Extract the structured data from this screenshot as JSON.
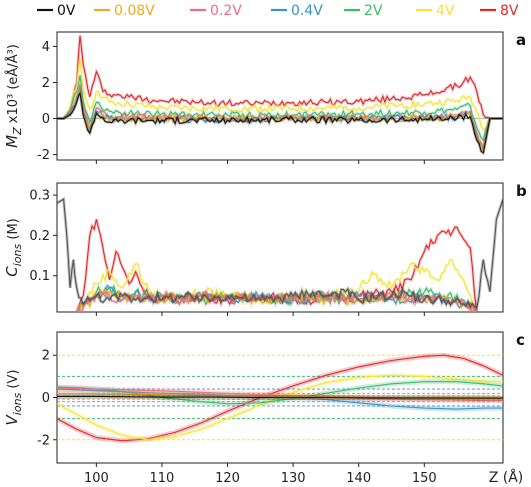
{
  "legend": [
    {
      "label": "0V",
      "color": "#111111"
    },
    {
      "label": "0.08V",
      "color": "#f2a81d"
    },
    {
      "label": "0.2V",
      "color": "#ef6b86"
    },
    {
      "label": "0.4V",
      "color": "#3a93c3"
    },
    {
      "label": "2V",
      "color": "#3bbd6a"
    },
    {
      "label": "4V",
      "color": "#f4e43a"
    },
    {
      "label": "8V",
      "color": "#e0282c"
    }
  ],
  "x_axis": {
    "ticks": [
      "100",
      "110",
      "120",
      "130",
      "140",
      "150"
    ],
    "tick_values": [
      100,
      110,
      120,
      130,
      140,
      150
    ],
    "range": [
      94,
      162
    ],
    "label": "Z (Å)"
  },
  "chart_data": [
    {
      "type": "line",
      "panel": "a",
      "ylabel_main": "M",
      "ylabel_sub": "Z",
      "ylabel_rest": " x10³ (eÅ/Å³)",
      "ylim": [
        -2.3,
        4.8
      ],
      "yticks": [
        -2,
        0,
        2,
        4
      ],
      "ytick_labels": [
        "-2",
        "0",
        "2",
        "4"
      ],
      "series": [
        {
          "name": "8V",
          "x": [
            94,
            95,
            96,
            97,
            97.5,
            98,
            99,
            100,
            101,
            103,
            105,
            110,
            115,
            120,
            125,
            130,
            135,
            140,
            145,
            150,
            155,
            157,
            158,
            159,
            160,
            162
          ],
          "y": [
            0,
            0,
            0.5,
            2,
            4.6,
            3,
            1.2,
            2.6,
            1.5,
            1.3,
            1.2,
            1.0,
            0.9,
            0.85,
            0.85,
            0.9,
            0.9,
            0.95,
            1.1,
            1.3,
            1.8,
            2.3,
            1.5,
            0.2,
            0,
            0
          ]
        },
        {
          "name": "4V",
          "x": [
            94,
            95,
            96,
            97,
            97.5,
            98,
            99,
            100,
            102,
            105,
            110,
            120,
            130,
            140,
            150,
            155,
            157,
            158,
            159,
            160,
            162
          ],
          "y": [
            0,
            0,
            0.6,
            1.8,
            3.3,
            1.6,
            0.5,
            1.5,
            0.9,
            0.8,
            0.6,
            0.55,
            0.55,
            0.6,
            0.8,
            1.0,
            1.2,
            0.4,
            -0.6,
            0,
            0
          ]
        },
        {
          "name": "2V",
          "x": [
            94,
            95,
            96,
            97,
            97.5,
            98,
            99,
            100,
            102,
            105,
            110,
            120,
            130,
            140,
            150,
            155,
            157,
            158,
            159,
            160,
            162
          ],
          "y": [
            0,
            0,
            0.4,
            1.5,
            2.4,
            1.0,
            -0.2,
            0.9,
            0.4,
            0.3,
            0.25,
            0.2,
            0.2,
            0.25,
            0.35,
            0.5,
            0.7,
            -0.5,
            -1.2,
            0,
            0
          ]
        },
        {
          "name": "0.2V",
          "x": [
            94,
            95,
            96,
            97,
            97.5,
            98,
            99,
            100,
            102,
            105,
            110,
            120,
            130,
            140,
            150,
            155,
            157,
            158,
            159,
            160,
            162
          ],
          "y": [
            0,
            0,
            0.3,
            1.2,
            1.9,
            0.6,
            -0.6,
            0.6,
            0.1,
            0.1,
            0.05,
            0,
            0.05,
            0.05,
            0.1,
            0.2,
            0.4,
            -0.8,
            -1.6,
            0,
            0
          ]
        },
        {
          "name": "0.4V",
          "x": [
            94,
            95,
            96,
            97,
            97.5,
            98,
            99,
            100,
            102,
            105,
            110,
            120,
            130,
            140,
            150,
            155,
            157,
            158,
            159,
            160,
            162
          ],
          "y": [
            0,
            0,
            0.3,
            1.1,
            1.7,
            0.4,
            -0.8,
            0.4,
            0,
            0,
            -0.05,
            -0.05,
            0,
            0,
            0.05,
            0.1,
            0.3,
            -1.0,
            -1.7,
            0,
            0
          ]
        },
        {
          "name": "0.08V",
          "x": [
            94,
            95,
            96,
            97,
            97.5,
            98,
            99,
            100,
            102,
            105,
            110,
            120,
            130,
            140,
            150,
            155,
            157,
            158,
            159,
            160,
            162
          ],
          "y": [
            0,
            0,
            0.2,
            1.0,
            1.6,
            0.3,
            -0.7,
            0.3,
            -0.1,
            0,
            0,
            0,
            0,
            0,
            0,
            0.1,
            0.2,
            -1.1,
            -1.8,
            0,
            0
          ]
        },
        {
          "name": "0V",
          "x": [
            94,
            95,
            96,
            97,
            97.5,
            98,
            99,
            100,
            102,
            105,
            110,
            120,
            130,
            140,
            150,
            155,
            157,
            158,
            159,
            160,
            162
          ],
          "y": [
            0,
            0,
            0.2,
            0.9,
            1.4,
            0.2,
            -0.8,
            0.3,
            -0.2,
            -0.1,
            -0.1,
            -0.1,
            -0.05,
            -0.1,
            -0.05,
            0,
            0.1,
            -1.2,
            -1.9,
            0,
            0
          ]
        }
      ],
      "reference_line": 0
    },
    {
      "type": "line",
      "panel": "b",
      "ylabel_main": "C",
      "ylabel_sub": "ions",
      "ylabel_rest": " (M)",
      "ylim": [
        0.01,
        0.33
      ],
      "yticks": [
        0.1,
        0.2,
        0.3
      ],
      "ytick_labels": [
        "0.1",
        "0.2",
        "0.3"
      ],
      "series": [
        {
          "name": "8V",
          "x": [
            97,
            98,
            99,
            100,
            101,
            102,
            103,
            104,
            105,
            106,
            107,
            108,
            110,
            113,
            116,
            120,
            125,
            130,
            135,
            140,
            145,
            148,
            150,
            152,
            153,
            154,
            155,
            156,
            157,
            158
          ],
          "y": [
            0.01,
            0.05,
            0.2,
            0.24,
            0.17,
            0.09,
            0.16,
            0.12,
            0.08,
            0.11,
            0.07,
            0.05,
            0.05,
            0.04,
            0.05,
            0.04,
            0.05,
            0.04,
            0.04,
            0.05,
            0.06,
            0.09,
            0.16,
            0.2,
            0.21,
            0.2,
            0.22,
            0.19,
            0.17,
            0.01
          ]
        },
        {
          "name": "4V",
          "x": [
            97,
            98,
            100,
            102,
            104,
            106,
            108,
            110,
            113,
            116,
            120,
            125,
            130,
            135,
            140,
            142,
            145,
            148,
            150,
            152,
            154,
            156,
            158
          ],
          "y": [
            0.01,
            0.03,
            0.08,
            0.11,
            0.07,
            0.13,
            0.06,
            0.05,
            0.04,
            0.06,
            0.05,
            0.04,
            0.05,
            0.05,
            0.06,
            0.11,
            0.07,
            0.13,
            0.11,
            0.09,
            0.14,
            0.09,
            0.01
          ]
        },
        {
          "name": "2V",
          "x": [
            97,
            98,
            100,
            102,
            104,
            106,
            108,
            110,
            113,
            116,
            120,
            125,
            130,
            135,
            140,
            145,
            150,
            153,
            156,
            158
          ],
          "y": [
            0.01,
            0.03,
            0.06,
            0.07,
            0.05,
            0.06,
            0.05,
            0.04,
            0.05,
            0.04,
            0.05,
            0.04,
            0.04,
            0.05,
            0.04,
            0.05,
            0.06,
            0.05,
            0.04,
            0.01
          ]
        },
        {
          "name": "0.4V",
          "x": [
            97,
            98,
            100,
            102,
            104,
            106,
            108,
            110,
            113,
            116,
            120,
            125,
            130,
            135,
            140,
            145,
            150,
            153,
            156,
            158
          ],
          "y": [
            0.01,
            0.03,
            0.05,
            0.07,
            0.04,
            0.06,
            0.04,
            0.05,
            0.04,
            0.05,
            0.04,
            0.05,
            0.04,
            0.04,
            0.05,
            0.04,
            0.05,
            0.04,
            0.03,
            0.01
          ]
        },
        {
          "name": "0.08V",
          "x": [
            97,
            98,
            100,
            102,
            104,
            106,
            108,
            110,
            113,
            116,
            120,
            125,
            130,
            135,
            140,
            145,
            150,
            153,
            156,
            158
          ],
          "y": [
            0.01,
            0.02,
            0.05,
            0.06,
            0.05,
            0.04,
            0.05,
            0.04,
            0.05,
            0.04,
            0.05,
            0.04,
            0.05,
            0.04,
            0.04,
            0.05,
            0.04,
            0.04,
            0.03,
            0.01
          ]
        },
        {
          "name": "0.2V",
          "x": [
            97,
            98,
            100,
            102,
            104,
            106,
            108,
            110,
            113,
            116,
            120,
            125,
            130,
            135,
            140,
            145,
            150,
            153,
            156,
            158
          ],
          "y": [
            0.01,
            0.02,
            0.05,
            0.05,
            0.04,
            0.05,
            0.04,
            0.05,
            0.04,
            0.05,
            0.04,
            0.05,
            0.04,
            0.05,
            0.04,
            0.05,
            0.04,
            0.04,
            0.03,
            0.01
          ]
        },
        {
          "name": "0V",
          "x": [
            94,
            95,
            95.5,
            96,
            96.5,
            97,
            98,
            99,
            100,
            102,
            104,
            106,
            108,
            110,
            113,
            116,
            120,
            125,
            130,
            133,
            135,
            138,
            140,
            143,
            145,
            147,
            148,
            150,
            153,
            156,
            158,
            159,
            160,
            161,
            162
          ],
          "y": [
            0.28,
            0.29,
            0.2,
            0.07,
            0.14,
            0.07,
            0.03,
            0.04,
            0.05,
            0.04,
            0.05,
            0.04,
            0.05,
            0.04,
            0.05,
            0.04,
            0.05,
            0.04,
            0.05,
            0.06,
            0.05,
            0.06,
            0.04,
            0.05,
            0.05,
            0.06,
            0.05,
            0.04,
            0.04,
            0.03,
            0.02,
            0.14,
            0.06,
            0.24,
            0.29
          ]
        }
      ]
    },
    {
      "type": "line",
      "panel": "c",
      "ylabel_main": "V",
      "ylabel_sub": "ions",
      "ylabel_rest": " (V)",
      "ylim": [
        -3.1,
        3.1
      ],
      "yticks": [
        -2,
        0,
        2
      ],
      "ytick_labels": [
        "-2",
        "0",
        "2"
      ],
      "series": [
        {
          "name": "8V",
          "x": [
            94,
            97,
            100,
            104,
            108,
            112,
            116,
            120,
            125,
            130,
            135,
            140,
            145,
            150,
            153,
            156,
            159,
            162
          ],
          "y": [
            -1.0,
            -1.5,
            -1.9,
            -2.05,
            -1.95,
            -1.65,
            -1.2,
            -0.65,
            0.0,
            0.55,
            1.05,
            1.45,
            1.75,
            1.95,
            2.0,
            1.85,
            1.5,
            1.05
          ]
        },
        {
          "name": "4V",
          "x": [
            94,
            97,
            100,
            104,
            108,
            112,
            116,
            120,
            125,
            130,
            135,
            140,
            145,
            150,
            154,
            158,
            162
          ],
          "y": [
            -0.3,
            -0.8,
            -1.3,
            -1.8,
            -2.0,
            -1.85,
            -1.5,
            -1.0,
            -0.35,
            0.25,
            0.7,
            0.95,
            1.05,
            1.0,
            0.9,
            0.8,
            0.75
          ]
        },
        {
          "name": "2V",
          "x": [
            94,
            98,
            102,
            106,
            110,
            116,
            120,
            125,
            130,
            135,
            140,
            145,
            150,
            155,
            159,
            162
          ],
          "y": [
            0.5,
            0.45,
            0.35,
            0.2,
            0.0,
            -0.2,
            -0.3,
            -0.25,
            -0.05,
            0.2,
            0.45,
            0.65,
            0.75,
            0.75,
            0.65,
            0.55
          ]
        },
        {
          "name": "0.4V",
          "x": [
            94,
            98,
            102,
            106,
            110,
            116,
            120,
            125,
            130,
            135,
            140,
            145,
            150,
            155,
            159,
            162
          ],
          "y": [
            0.4,
            0.35,
            0.3,
            0.25,
            0.2,
            0.15,
            0.1,
            0.05,
            0.0,
            -0.1,
            -0.25,
            -0.4,
            -0.5,
            -0.55,
            -0.5,
            -0.5
          ]
        },
        {
          "name": "0.2V",
          "x": [
            94,
            100,
            106,
            112,
            118,
            124,
            130,
            136,
            142,
            148,
            154,
            160,
            162
          ],
          "y": [
            0.45,
            0.4,
            0.35,
            0.3,
            0.22,
            0.15,
            0.08,
            0.02,
            -0.05,
            -0.1,
            -0.12,
            -0.15,
            -0.15
          ]
        },
        {
          "name": "0.08V",
          "x": [
            94,
            100,
            106,
            112,
            118,
            124,
            130,
            136,
            142,
            148,
            154,
            160,
            162
          ],
          "y": [
            0.2,
            0.18,
            0.15,
            0.12,
            0.1,
            0.08,
            0.05,
            0.02,
            0.0,
            -0.02,
            -0.05,
            -0.05,
            -0.05
          ]
        },
        {
          "name": "0V",
          "x": [
            94,
            100,
            106,
            112,
            118,
            124,
            130,
            136,
            142,
            148,
            154,
            160,
            162
          ],
          "y": [
            0.05,
            0.05,
            0.03,
            0.02,
            0.02,
            0.0,
            0.0,
            0.0,
            -0.02,
            -0.02,
            -0.02,
            -0.03,
            -0.03
          ]
        }
      ],
      "dashed_reference_lines": [
        {
          "y": 2.0,
          "color": "#f4e43a"
        },
        {
          "y": 1.0,
          "color": "#3bbd6a"
        },
        {
          "y": 0.4,
          "color": "#3a93c3"
        },
        {
          "y": 0.2,
          "color": "#ef6b86"
        },
        {
          "y": 0.08,
          "color": "#f2a81d"
        },
        {
          "y": -0.08,
          "color": "#f2a81d"
        },
        {
          "y": -0.2,
          "color": "#ef6b86"
        },
        {
          "y": -0.4,
          "color": "#3a93c3"
        },
        {
          "y": -1.0,
          "color": "#3bbd6a"
        },
        {
          "y": -2.0,
          "color": "#f4e43a"
        }
      ]
    }
  ]
}
